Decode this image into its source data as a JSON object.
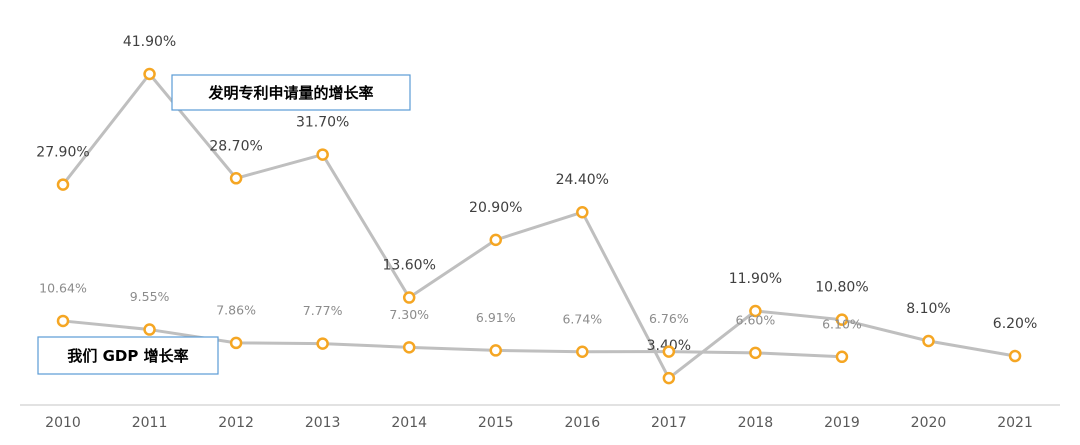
{
  "chart_data": {
    "type": "line",
    "categories": [
      "2010",
      "2011",
      "2012",
      "2013",
      "2014",
      "2015",
      "2016",
      "2017",
      "2018",
      "2019",
      "2020",
      "2021"
    ],
    "ylim": [
      0,
      45
    ],
    "series": [
      {
        "name": "发明专利申请量的增长率",
        "color": "#bfbfbf",
        "marker_color": "#f5a623",
        "values": [
          27.9,
          41.9,
          28.7,
          31.7,
          13.6,
          20.9,
          24.4,
          3.4,
          11.9,
          10.8,
          8.1,
          6.2
        ],
        "value_labels": [
          "27.90%",
          "41.90%",
          "28.70%",
          "31.70%",
          "13.60%",
          "20.90%",
          "24.40%",
          "3.40%",
          "11.90%",
          "10.80%",
          "8.10%",
          "6.20%"
        ]
      },
      {
        "name": "我们 GDP 增长率",
        "color": "#bfbfbf",
        "marker_color": "#f5a623",
        "values": [
          10.64,
          9.55,
          7.86,
          7.77,
          7.3,
          6.91,
          6.74,
          6.76,
          6.6,
          6.1,
          null,
          null
        ],
        "value_labels": [
          "10.64%",
          "9.55%",
          "7.86%",
          "7.77%",
          "7.30%",
          "6.91%",
          "6.74%",
          "6.76%",
          "6.60%",
          "6.10%",
          null,
          null
        ]
      }
    ]
  }
}
